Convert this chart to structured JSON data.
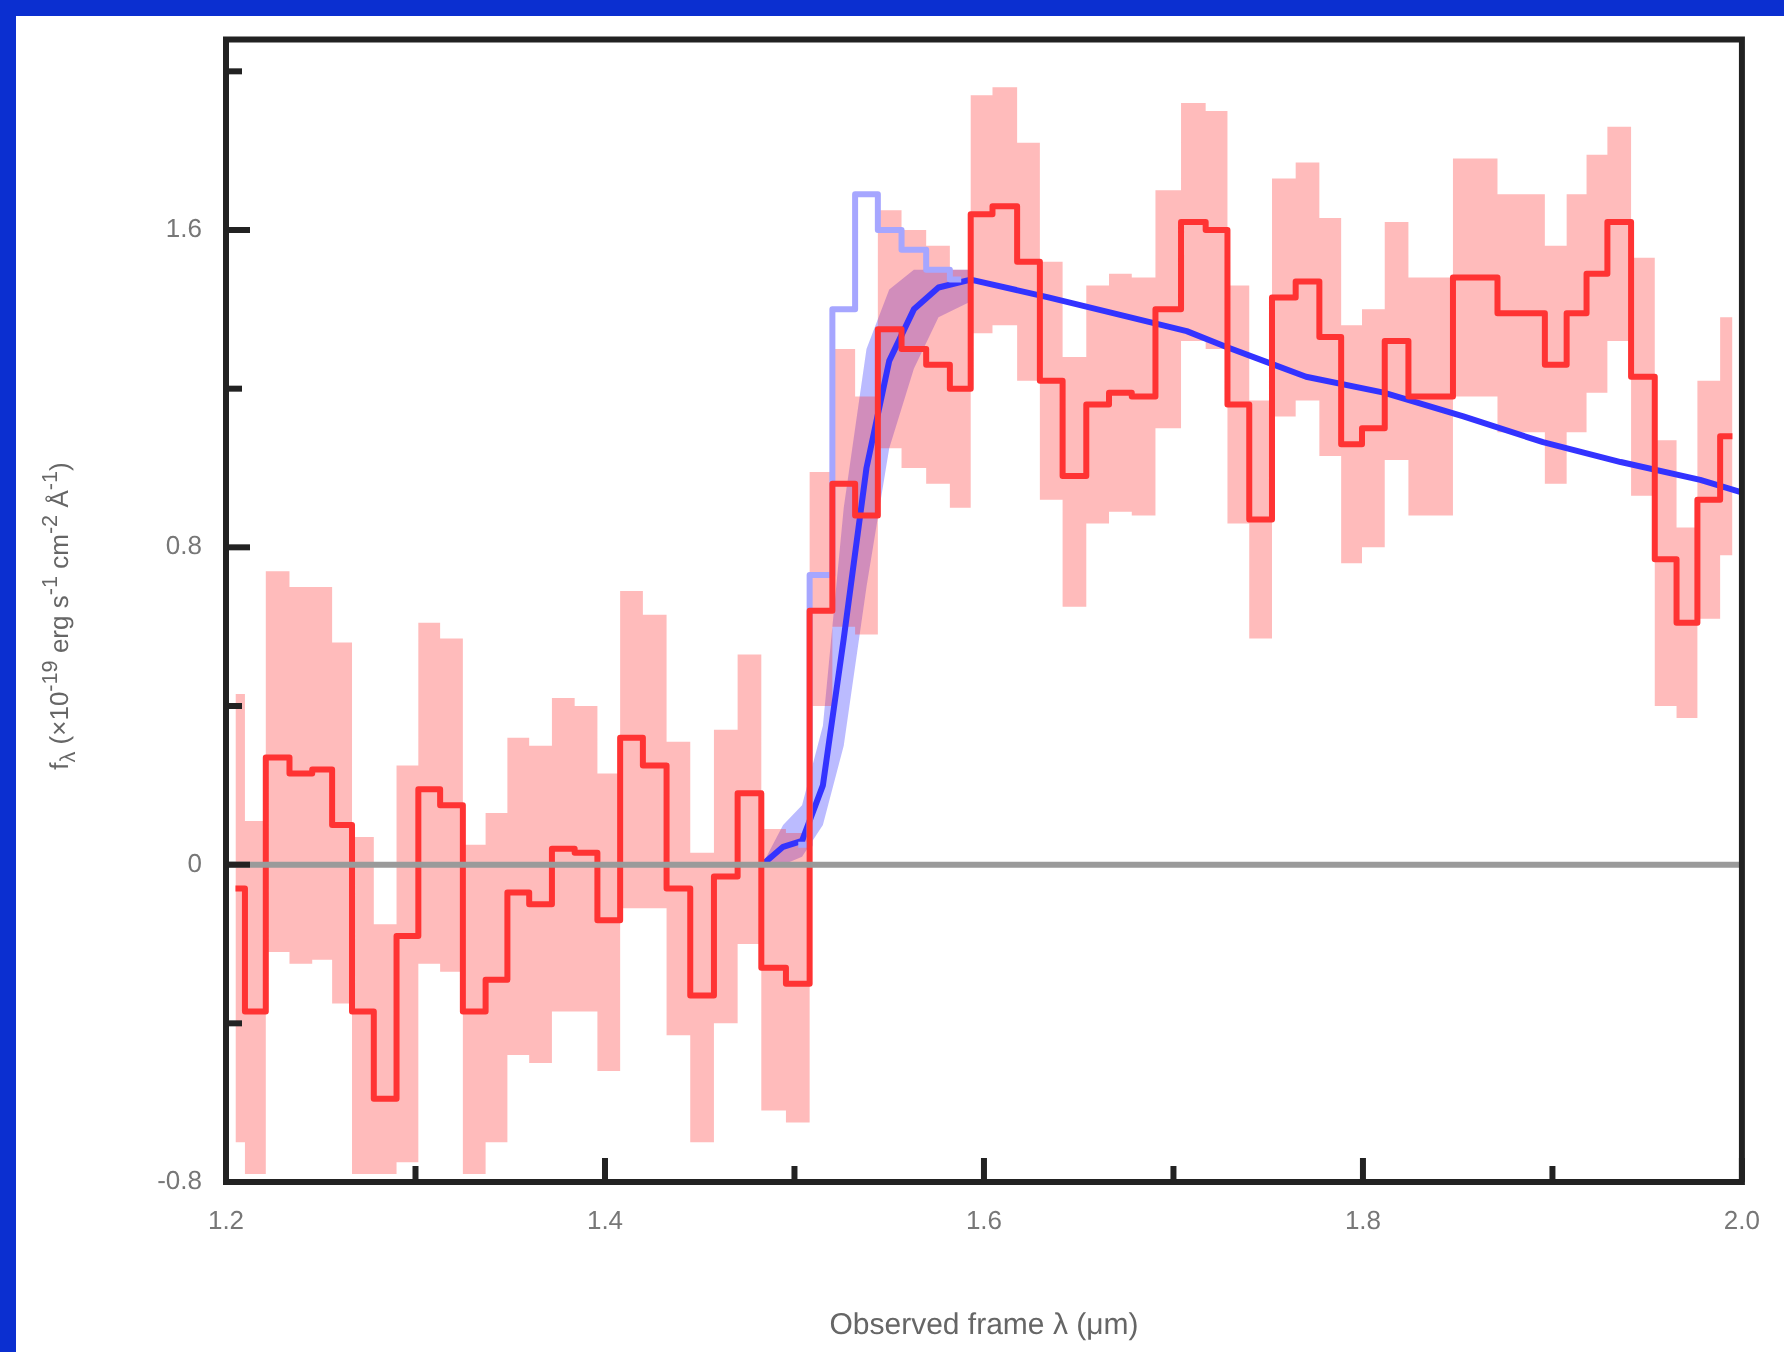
{
  "chart_data": {
    "type": "step",
    "xlabel": "Observed frame λ (μm)",
    "ylabel": "f$_{λ}$ (×10$^{-19}$ erg s$^{-1}$ cm$^{-2}$ Å$^{-1}$)",
    "xlim": [
      1.2,
      2.0
    ],
    "xticks": [
      1.2,
      {
        "value": 1.3,
        "label": null
      },
      1.4,
      {
        "value": 1.5,
        "label": null
      },
      1.6,
      {
        "value": 1.7,
        "label": null
      },
      1.8,
      {
        "value": 1.9,
        "label": null
      },
      {
        "value": 2.0,
        "label": "2.0"
      }
    ],
    "ylim": [
      -0.8,
      2.08
    ],
    "yticks": [
      -0.8,
      {
        "value": -0.4,
        "label": null
      },
      0,
      {
        "value": 0.4,
        "label": null
      },
      0.8,
      {
        "value": 1.2,
        "label": null
      },
      1.6,
      {
        "value": 2.0,
        "label": null
      }
    ],
    "grid": false,
    "legend": false,
    "ref_lines": [
      {
        "axis": "y",
        "value": 0,
        "color": "#9a9a9a"
      }
    ],
    "series": [
      {
        "color": "#ff3333",
        "x": [
          1.205,
          1.215,
          1.227,
          1.24,
          1.251,
          1.261,
          1.272,
          1.284,
          1.296,
          1.307,
          1.319,
          1.331,
          1.343,
          1.354,
          1.366,
          1.378,
          1.39,
          1.402,
          1.414,
          1.426,
          1.439,
          1.451,
          1.464,
          1.476,
          1.489,
          1.502,
          1.514,
          1.526,
          1.538,
          1.55,
          1.563,
          1.576,
          1.588,
          1.598,
          1.611,
          1.624,
          1.635,
          1.648,
          1.66,
          1.672,
          1.684,
          1.697,
          1.711,
          1.723,
          1.734,
          1.746,
          1.758,
          1.771,
          1.783,
          1.794,
          1.805,
          1.818,
          1.83,
          1.842,
          1.853,
          1.865,
          1.877,
          1.89,
          1.902,
          1.913,
          1.923,
          1.935,
          1.948,
          1.96,
          1.971,
          1.982,
          1.995
        ],
        "values": [
          -0.06,
          -0.37,
          0.27,
          0.23,
          0.24,
          0.1,
          -0.37,
          -0.59,
          -0.18,
          0.19,
          0.15,
          -0.37,
          -0.29,
          -0.07,
          -0.1,
          0.04,
          0.03,
          -0.14,
          0.32,
          0.25,
          -0.06,
          -0.33,
          -0.03,
          0.18,
          -0.26,
          -0.3,
          0.64,
          0.96,
          0.88,
          1.35,
          1.3,
          1.26,
          1.2,
          1.64,
          1.66,
          1.52,
          1.22,
          0.98,
          1.16,
          1.19,
          1.18,
          1.4,
          1.62,
          1.6,
          1.16,
          0.87,
          1.43,
          1.47,
          1.33,
          1.06,
          1.1,
          1.32,
          1.18,
          1.18,
          1.48,
          1.48,
          1.39,
          1.39,
          1.26,
          1.39,
          1.49,
          1.62,
          1.23,
          0.77,
          0.61,
          0.92,
          1.08
        ],
        "lower": [
          -0.7,
          -0.78,
          -0.22,
          -0.25,
          -0.24,
          -0.35,
          -0.78,
          -0.78,
          -0.75,
          -0.25,
          -0.27,
          -0.78,
          -0.7,
          -0.48,
          -0.5,
          -0.37,
          -0.37,
          -0.52,
          -0.11,
          -0.11,
          -0.43,
          -0.7,
          -0.4,
          -0.2,
          -0.62,
          -0.65,
          0.4,
          0.6,
          0.58,
          1.05,
          1.0,
          0.96,
          0.9,
          1.34,
          1.36,
          1.22,
          0.92,
          0.65,
          0.86,
          0.89,
          0.88,
          1.1,
          1.32,
          1.3,
          0.86,
          0.57,
          1.13,
          1.17,
          1.03,
          0.76,
          0.8,
          1.02,
          0.88,
          0.88,
          1.18,
          1.18,
          1.09,
          1.09,
          0.96,
          1.09,
          1.19,
          1.32,
          0.93,
          0.4,
          0.37,
          0.62,
          0.78
        ],
        "upper": [
          0.43,
          0.11,
          0.74,
          0.7,
          0.7,
          0.56,
          0.07,
          -0.15,
          0.25,
          0.61,
          0.57,
          0.05,
          0.13,
          0.32,
          0.3,
          0.42,
          0.4,
          0.23,
          0.69,
          0.63,
          0.31,
          0.03,
          0.34,
          0.53,
          0.09,
          0.08,
          0.99,
          1.3,
          1.18,
          1.65,
          1.6,
          1.56,
          1.5,
          1.94,
          1.96,
          1.82,
          1.52,
          1.28,
          1.46,
          1.49,
          1.48,
          1.7,
          1.92,
          1.9,
          1.46,
          1.17,
          1.73,
          1.77,
          1.63,
          1.36,
          1.4,
          1.62,
          1.48,
          1.48,
          1.78,
          1.78,
          1.69,
          1.69,
          1.56,
          1.69,
          1.79,
          1.86,
          1.53,
          1.07,
          0.85,
          1.22,
          1.38
        ]
      },
      {
        "color": "#a6a6ff",
        "x": [
          1.502,
          1.514,
          1.526,
          1.538,
          1.55,
          1.563,
          1.576,
          1.588
        ],
        "values": [
          0.05,
          0.73,
          1.4,
          1.69,
          1.6,
          1.55,
          1.5,
          1.475
        ]
      },
      {
        "type": "line",
        "color": "#3333ff",
        "x": [
          1.483,
          1.494,
          1.504,
          1.515,
          1.526,
          1.538,
          1.55,
          1.563,
          1.576,
          1.593,
          1.634,
          1.707,
          1.728,
          1.77,
          1.811,
          1.853,
          1.895,
          1.936,
          1.978,
          1.999
        ],
        "values": [
          0.0,
          0.045,
          0.06,
          0.2,
          0.57,
          1.0,
          1.27,
          1.4,
          1.455,
          1.475,
          1.43,
          1.345,
          1.305,
          1.23,
          1.19,
          1.13,
          1.065,
          1.015,
          0.97,
          0.94
        ],
        "lower": [
          0.0,
          0.0,
          0.02,
          0.1,
          0.3,
          0.7,
          1.05,
          1.25,
          1.38,
          1.42,
          null,
          null,
          null,
          null,
          null,
          null,
          null,
          null,
          null,
          null
        ],
        "upper": [
          0.0,
          0.1,
          0.15,
          0.35,
          0.9,
          1.3,
          1.45,
          1.5,
          1.5,
          1.5,
          null,
          null,
          null,
          null,
          null,
          null,
          null,
          null,
          null,
          null
        ]
      }
    ]
  }
}
